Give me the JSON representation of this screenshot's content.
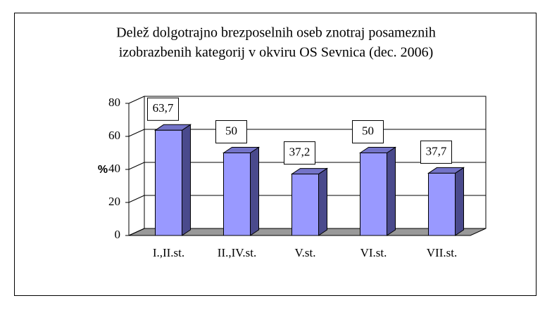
{
  "chart_data": {
    "type": "bar",
    "title": [
      "Delež dolgotrajno brezposelnih oseb znotraj posameznih",
      "izobrazbenih kategorij v okviru OS Sevnica (dec. 2006)"
    ],
    "y_label": "%",
    "categories": [
      "I.,II.st.",
      "II.,IV.st.",
      "V.st.",
      "VI.st.",
      "VII.st."
    ],
    "values": [
      63.7,
      50,
      37.2,
      50,
      37.7
    ],
    "value_labels": [
      "63,7",
      "50",
      "37,2",
      "50",
      "37,7"
    ],
    "color": "#9999ff",
    "ylim": [
      0,
      80
    ],
    "yticks": [
      0,
      20,
      40,
      60,
      80
    ],
    "grid": true
  }
}
